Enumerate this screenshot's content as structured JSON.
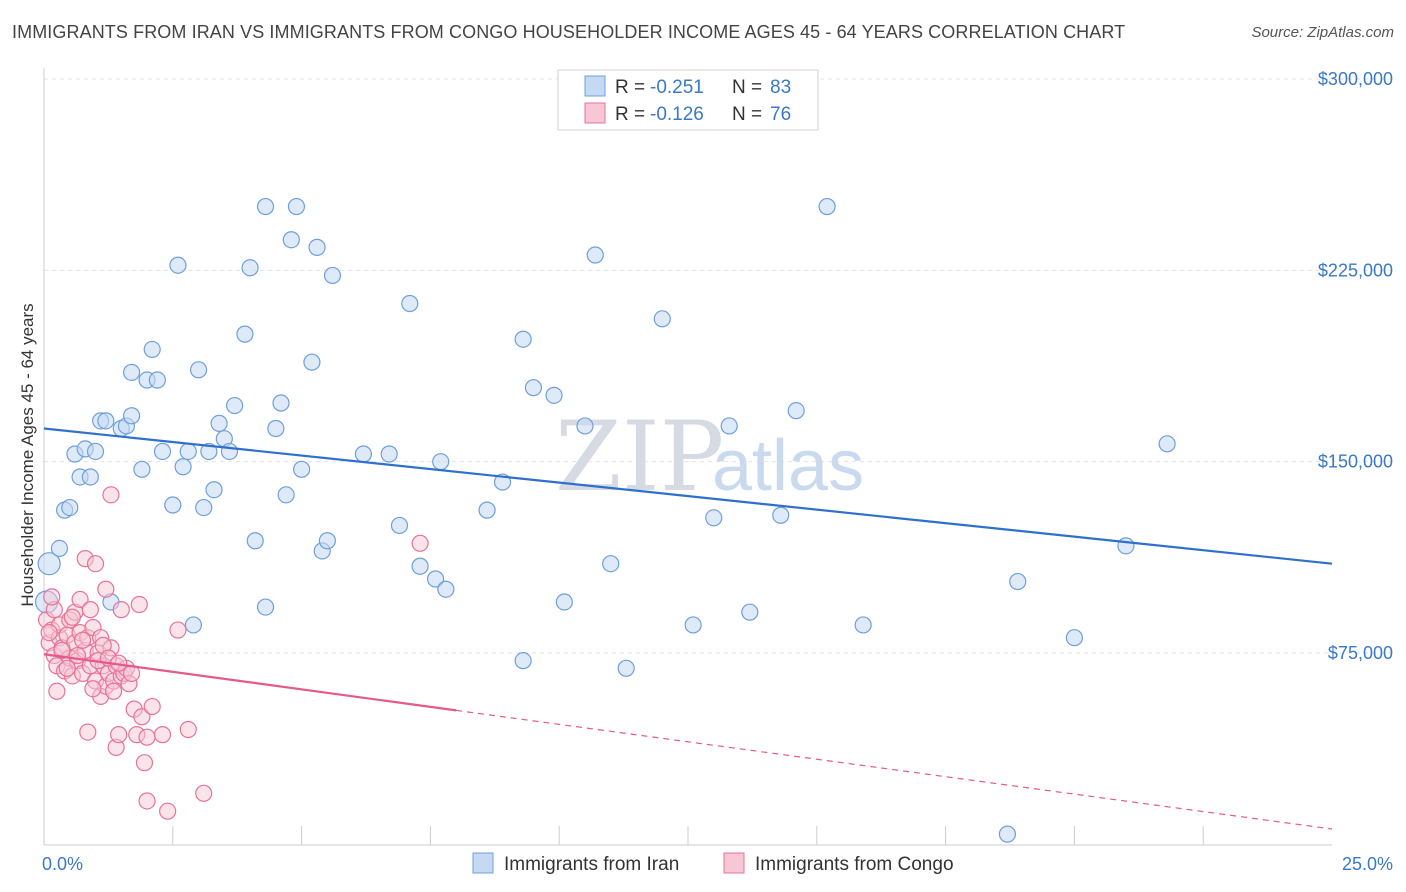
{
  "title": "IMMIGRANTS FROM IRAN VS IMMIGRANTS FROM CONGO HOUSEHOLDER INCOME AGES 45 - 64 YEARS CORRELATION CHART",
  "source": "Source: ZipAtlas.com",
  "watermark": {
    "zip": "ZIP",
    "atlas": "atlas"
  },
  "colors": {
    "iran": "#6d9fdc",
    "iran_fill": "#c5d9f3",
    "congo": "#e8729a",
    "congo_fill": "#f8c7d6",
    "iran_line": "#2f70cc",
    "congo_line": "#e45a8a",
    "axis_text": "#3a78c9"
  },
  "legend": {
    "iran": {
      "r_label": "R = ",
      "r_value": "-0.251",
      "n_label": "N = ",
      "n_value": "83"
    },
    "congo": {
      "r_label": "R = ",
      "r_value": "-0.126",
      "n_label": "N = ",
      "n_value": "76"
    }
  },
  "chart_data": {
    "type": "scatter",
    "title": "IMMIGRANTS FROM IRAN VS IMMIGRANTS FROM CONGO HOUSEHOLDER INCOME AGES 45 - 64 YEARS CORRELATION CHART",
    "xlabel": "",
    "ylabel": "Householder Income Ages 45 - 64 years",
    "xlim": [
      0,
      25
    ],
    "ylim": [
      0,
      310000
    ],
    "x_tick_labels": [
      "0.0%",
      "25.0%"
    ],
    "y_ticks": [
      75000,
      150000,
      225000,
      300000
    ],
    "y_tick_labels": [
      "$75,000",
      "$150,000",
      "$225,000",
      "$300,000"
    ],
    "grid": true,
    "legend_position": "top-center",
    "series": [
      {
        "name": "Immigrants from Iran",
        "trend": {
          "x": [
            0,
            25
          ],
          "y": [
            163000,
            110000
          ]
        },
        "points": [
          [
            0.05,
            95000
          ],
          [
            0.1,
            110000
          ],
          [
            0.3,
            116000
          ],
          [
            0.4,
            131000
          ],
          [
            0.5,
            132000
          ],
          [
            0.6,
            153000
          ],
          [
            0.7,
            144000
          ],
          [
            0.8,
            155000
          ],
          [
            0.9,
            144000
          ],
          [
            1.0,
            154000
          ],
          [
            1.1,
            166000
          ],
          [
            1.2,
            166000
          ],
          [
            1.3,
            95000
          ],
          [
            1.5,
            163000
          ],
          [
            1.6,
            164000
          ],
          [
            1.7,
            168000
          ],
          [
            1.7,
            185000
          ],
          [
            1.9,
            147000
          ],
          [
            2.0,
            182000
          ],
          [
            2.1,
            194000
          ],
          [
            2.2,
            182000
          ],
          [
            2.3,
            154000
          ],
          [
            2.5,
            133000
          ],
          [
            2.6,
            227000
          ],
          [
            2.7,
            148000
          ],
          [
            2.8,
            154000
          ],
          [
            2.9,
            86000
          ],
          [
            3.0,
            186000
          ],
          [
            3.1,
            132000
          ],
          [
            3.2,
            154000
          ],
          [
            3.3,
            139000
          ],
          [
            3.4,
            165000
          ],
          [
            3.5,
            159000
          ],
          [
            3.6,
            154000
          ],
          [
            3.7,
            172000
          ],
          [
            3.9,
            200000
          ],
          [
            4.0,
            226000
          ],
          [
            4.1,
            119000
          ],
          [
            4.3,
            250000
          ],
          [
            4.3,
            93000
          ],
          [
            4.5,
            163000
          ],
          [
            4.6,
            173000
          ],
          [
            4.7,
            137000
          ],
          [
            4.8,
            237000
          ],
          [
            4.9,
            250000
          ],
          [
            5.0,
            147000
          ],
          [
            5.2,
            189000
          ],
          [
            5.3,
            234000
          ],
          [
            5.4,
            115000
          ],
          [
            5.5,
            119000
          ],
          [
            5.6,
            223000
          ],
          [
            6.2,
            153000
          ],
          [
            6.7,
            153000
          ],
          [
            6.9,
            125000
          ],
          [
            7.1,
            212000
          ],
          [
            7.3,
            109000
          ],
          [
            7.6,
            104000
          ],
          [
            7.7,
            150000
          ],
          [
            7.8,
            100000
          ],
          [
            8.6,
            131000
          ],
          [
            8.9,
            142000
          ],
          [
            9.3,
            198000
          ],
          [
            9.3,
            72000
          ],
          [
            9.5,
            179000
          ],
          [
            9.9,
            176000
          ],
          [
            10.1,
            95000
          ],
          [
            10.5,
            164000
          ],
          [
            10.7,
            231000
          ],
          [
            11.0,
            110000
          ],
          [
            11.3,
            69000
          ],
          [
            12.0,
            206000
          ],
          [
            12.6,
            86000
          ],
          [
            13.0,
            128000
          ],
          [
            13.3,
            164000
          ],
          [
            13.7,
            91000
          ],
          [
            14.3,
            129000
          ],
          [
            14.6,
            170000
          ],
          [
            15.2,
            250000
          ],
          [
            15.9,
            86000
          ],
          [
            18.7,
            4000
          ],
          [
            18.9,
            103000
          ],
          [
            20.0,
            81000
          ],
          [
            21.0,
            117000
          ],
          [
            21.8,
            157000
          ]
        ]
      },
      {
        "name": "Immigrants from Congo",
        "trend": {
          "x": [
            0,
            8.0
          ],
          "y": [
            74500,
            52500
          ],
          "dashed_to": {
            "x": 25,
            "y": 6000
          }
        },
        "points": [
          [
            0.05,
            88000
          ],
          [
            0.1,
            79000
          ],
          [
            0.15,
            84000
          ],
          [
            0.2,
            74000
          ],
          [
            0.2,
            92000
          ],
          [
            0.25,
            70000
          ],
          [
            0.3,
            81000
          ],
          [
            0.3,
            86000
          ],
          [
            0.35,
            77000
          ],
          [
            0.4,
            68000
          ],
          [
            0.45,
            82000
          ],
          [
            0.5,
            73000
          ],
          [
            0.5,
            88000
          ],
          [
            0.55,
            66000
          ],
          [
            0.6,
            79000
          ],
          [
            0.6,
            91000
          ],
          [
            0.65,
            72000
          ],
          [
            0.7,
            83000
          ],
          [
            0.7,
            96000
          ],
          [
            0.75,
            67000
          ],
          [
            0.8,
            76000
          ],
          [
            0.8,
            112000
          ],
          [
            0.85,
            81000
          ],
          [
            0.85,
            44000
          ],
          [
            0.9,
            70000
          ],
          [
            0.9,
            92000
          ],
          [
            0.95,
            85000
          ],
          [
            1.0,
            64000
          ],
          [
            1.0,
            110000
          ],
          [
            1.05,
            75000
          ],
          [
            1.1,
            81000
          ],
          [
            1.1,
            58000
          ],
          [
            1.15,
            70000
          ],
          [
            1.2,
            62000
          ],
          [
            1.2,
            100000
          ],
          [
            1.25,
            67000
          ],
          [
            1.3,
            77000
          ],
          [
            1.3,
            137000
          ],
          [
            1.35,
            64000
          ],
          [
            1.4,
            70000
          ],
          [
            1.4,
            38000
          ],
          [
            1.45,
            43000
          ],
          [
            1.5,
            66000
          ],
          [
            1.5,
            92000
          ],
          [
            1.55,
            67000
          ],
          [
            1.6,
            69000
          ],
          [
            1.65,
            63000
          ],
          [
            1.7,
            67000
          ],
          [
            1.75,
            53000
          ],
          [
            1.8,
            43000
          ],
          [
            1.85,
            94000
          ],
          [
            1.9,
            50000
          ],
          [
            1.95,
            32000
          ],
          [
            2.0,
            17000
          ],
          [
            2.0,
            42000
          ],
          [
            2.1,
            54000
          ],
          [
            2.3,
            43000
          ],
          [
            2.4,
            13000
          ],
          [
            2.6,
            84000
          ],
          [
            2.8,
            45000
          ],
          [
            3.1,
            20000
          ],
          [
            7.3,
            118000
          ],
          [
            0.15,
            97000
          ],
          [
            0.25,
            60000
          ],
          [
            0.35,
            76000
          ],
          [
            0.45,
            69000
          ],
          [
            0.55,
            89000
          ],
          [
            0.65,
            74000
          ],
          [
            0.75,
            80000
          ],
          [
            0.95,
            61000
          ],
          [
            1.05,
            72000
          ],
          [
            1.15,
            78000
          ],
          [
            1.25,
            73000
          ],
          [
            1.35,
            60000
          ],
          [
            1.45,
            71000
          ],
          [
            0.1,
            83000
          ]
        ]
      }
    ]
  },
  "bottom_legend": {
    "iran": "Immigrants from Iran",
    "congo": "Immigrants from Congo"
  }
}
